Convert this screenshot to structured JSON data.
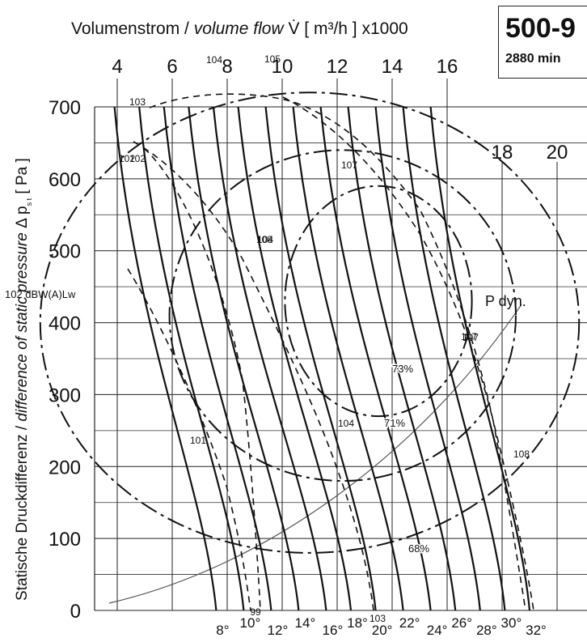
{
  "chart_data": {
    "type": "line",
    "title": "500-9",
    "subtitle": "2880 min",
    "x_axis_label": {
      "de": "Volumenstrom / ",
      "en": "volume flow",
      "symbol": " V̇ [ m³/h ] x1000"
    },
    "y_axis_label": {
      "de": "Statische Druckdifferenz / ",
      "en": "difference of static pressure",
      "symbol": " Δ p",
      "sub": "s t",
      "unit": "  [ Pa ]"
    },
    "x_ticks": [
      "4",
      "6",
      "8",
      "10",
      "12",
      "14",
      "16",
      "18",
      "20"
    ],
    "y_ticks": [
      "0",
      "100",
      "200",
      "300",
      "400",
      "500",
      "600",
      "700"
    ],
    "blade_angle_labels": [
      "8°",
      "10°",
      "12°",
      "14°",
      "16°",
      "18°",
      "20°",
      "22°",
      "24°",
      "26°",
      "28°",
      "30°",
      "32°"
    ],
    "sound_labels": [
      "99",
      "101",
      "102",
      "103",
      "104",
      "105",
      "107",
      "108",
      "104",
      "107",
      "103",
      "102",
      "104",
      "107",
      "108"
    ],
    "sound_unit_label": "102 dBW(A)Lw",
    "efficiency_labels": [
      "73%",
      "71%",
      "68%"
    ],
    "pdyn_label": "P dyn.",
    "xlim": [
      2.2,
      22
    ],
    "ylim": [
      0,
      700
    ],
    "grid": true,
    "efficiency_contours": [
      {
        "name": "73%",
        "cx": 13.5,
        "cy": 430,
        "rx": 3.4,
        "ry": 160
      },
      {
        "name": "71%",
        "cx": 12.2,
        "cy": 410,
        "rx": 6.3,
        "ry": 230
      },
      {
        "name": "68%",
        "cx": 11.0,
        "cy": 400,
        "rx": 9.8,
        "ry": 320
      }
    ],
    "blade_angle_curves": [
      {
        "angle": "8°",
        "top": [
          3.9,
          700
        ],
        "bottom": [
          7.6,
          0
        ]
      },
      {
        "angle": "10°",
        "top": [
          4.8,
          700
        ],
        "bottom": [
          8.6,
          0
        ]
      },
      {
        "angle": "12°",
        "top": [
          5.7,
          700
        ],
        "bottom": [
          9.6,
          0
        ]
      },
      {
        "angle": "14°",
        "top": [
          6.6,
          700
        ],
        "bottom": [
          10.6,
          0
        ]
      },
      {
        "angle": "16°",
        "top": [
          7.5,
          700
        ],
        "bottom": [
          11.6,
          0
        ]
      },
      {
        "angle": "18°",
        "top": [
          8.4,
          700
        ],
        "bottom": [
          12.5,
          0
        ]
      },
      {
        "angle": "20°",
        "top": [
          9.4,
          700
        ],
        "bottom": [
          13.4,
          0
        ]
      },
      {
        "angle": "22°",
        "top": [
          10.4,
          700
        ],
        "bottom": [
          14.4,
          0
        ]
      },
      {
        "angle": "24°",
        "top": [
          11.4,
          700
        ],
        "bottom": [
          15.4,
          0
        ]
      },
      {
        "angle": "26°",
        "top": [
          12.4,
          700
        ],
        "bottom": [
          16.3,
          0
        ]
      },
      {
        "angle": "28°",
        "top": [
          13.4,
          700
        ],
        "bottom": [
          17.2,
          0
        ]
      },
      {
        "angle": "30°",
        "top": [
          14.4,
          700
        ],
        "bottom": [
          18.1,
          0
        ]
      },
      {
        "angle": "32°",
        "top": [
          15.4,
          700
        ],
        "bottom": [
          19.0,
          0
        ]
      }
    ]
  }
}
